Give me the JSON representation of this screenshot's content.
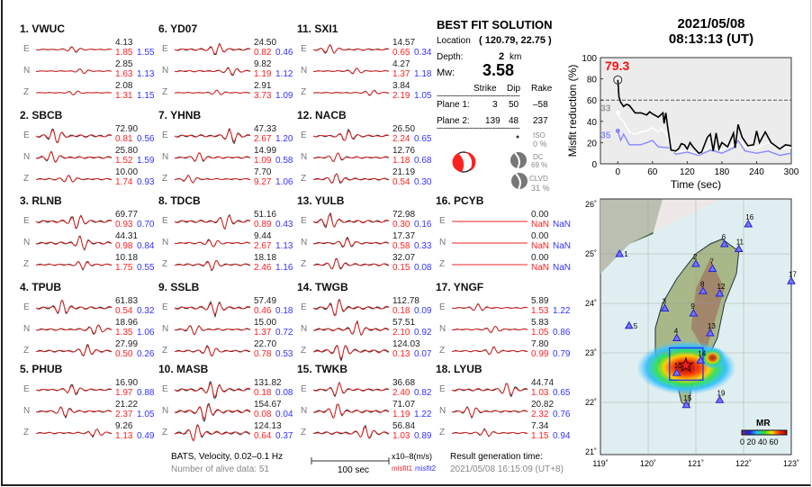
{
  "stations": [
    {
      "label": "1.  VWUC",
      "comps": [
        [
          "E",
          "4.13",
          "1.85",
          "1.55"
        ],
        [
          "N",
          "2.85",
          "1.63",
          "1.13"
        ],
        [
          "Z",
          "2.08",
          "1.31",
          "1.15"
        ]
      ]
    },
    {
      "label": "2.  SBCB",
      "comps": [
        [
          "E",
          "72.90",
          "0.81",
          "0.56"
        ],
        [
          "N",
          "25.80",
          "1.52",
          "1.59"
        ],
        [
          "Z",
          "10.00",
          "1.74",
          "0.93"
        ]
      ]
    },
    {
      "label": "3.  RLNB",
      "comps": [
        [
          "E",
          "69.77",
          "0.93",
          "0.70"
        ],
        [
          "N",
          "44.31",
          "0.98",
          "0.84"
        ],
        [
          "Z",
          "10.18",
          "1.75",
          "0.55"
        ]
      ]
    },
    {
      "label": "4.  TPUB",
      "comps": [
        [
          "E",
          "61.83",
          "0.54",
          "0.32"
        ],
        [
          "N",
          "18.96",
          "1.35",
          "1.06"
        ],
        [
          "Z",
          "27.99",
          "0.50",
          "0.26"
        ]
      ]
    },
    {
      "label": "5.  PHUB",
      "comps": [
        [
          "E",
          "16.90",
          "1.97",
          "0.88"
        ],
        [
          "N",
          "21.22",
          "2.37",
          "1.05"
        ],
        [
          "Z",
          "9.26",
          "1.13",
          "0.49"
        ]
      ]
    },
    {
      "label": "6.  YD07",
      "comps": [
        [
          "E",
          "24.50",
          "0.82",
          "0.46"
        ],
        [
          "N",
          "9.82",
          "1.19",
          "1.12"
        ],
        [
          "Z",
          "2.91",
          "3.73",
          "1.09"
        ]
      ]
    },
    {
      "label": "7.  YHNB",
      "comps": [
        [
          "E",
          "47.33",
          "2.67",
          "1.20"
        ],
        [
          "N",
          "14.99",
          "1.09",
          "0.58"
        ],
        [
          "Z",
          "7.70",
          "9.27",
          "1.06"
        ]
      ]
    },
    {
      "label": "8.  TDCB",
      "comps": [
        [
          "E",
          "51.16",
          "0.89",
          "0.43"
        ],
        [
          "N",
          "9.44",
          "2.67",
          "1.13"
        ],
        [
          "Z",
          "18.18",
          "2.46",
          "1.16"
        ]
      ]
    },
    {
      "label": "9.  SSLB",
      "comps": [
        [
          "E",
          "57.49",
          "0.46",
          "0.18"
        ],
        [
          "N",
          "15.00",
          "1.37",
          "0.72"
        ],
        [
          "Z",
          "22.70",
          "0.78",
          "0.53"
        ]
      ]
    },
    {
      "label": "10. MASB",
      "comps": [
        [
          "E",
          "131.82",
          "0.18",
          "0.08"
        ],
        [
          "N",
          "154.67",
          "0.08",
          "0.04"
        ],
        [
          "Z",
          "124.13",
          "0.64",
          "0.37"
        ]
      ]
    },
    {
      "label": "11. SXI1",
      "comps": [
        [
          "E",
          "14.57",
          "0.65",
          "0.34"
        ],
        [
          "N",
          "4.27",
          "1.37",
          "1.18"
        ],
        [
          "Z",
          "3.84",
          "2.19",
          "1.05"
        ]
      ]
    },
    {
      "label": "12. NACB",
      "comps": [
        [
          "E",
          "26.50",
          "2.24",
          "0.65"
        ],
        [
          "N",
          "12.76",
          "1.18",
          "0.68"
        ],
        [
          "Z",
          "21.19",
          "0.54",
          "0.30"
        ]
      ]
    },
    {
      "label": "13. YULB",
      "comps": [
        [
          "E",
          "72.98",
          "0.30",
          "0.16"
        ],
        [
          "N",
          "17.37",
          "0.58",
          "0.33"
        ],
        [
          "Z",
          "32.07",
          "0.15",
          "0.08"
        ]
      ]
    },
    {
      "label": "14. TWGB",
      "comps": [
        [
          "E",
          "112.78",
          "0.18",
          "0.09"
        ],
        [
          "N",
          "57.51",
          "2.10",
          "0.92"
        ],
        [
          "Z",
          "124.03",
          "0.13",
          "0.07"
        ]
      ]
    },
    {
      "label": "15. TWKB",
      "comps": [
        [
          "E",
          "36.68",
          "2.40",
          "0.82"
        ],
        [
          "N",
          "71.07",
          "1.19",
          "1.22"
        ],
        [
          "Z",
          "56.84",
          "1.03",
          "0.89"
        ]
      ]
    },
    {
      "label": "16. PCYB",
      "comps": [
        [
          "E",
          "0.00",
          "NaN",
          "NaN"
        ],
        [
          "N",
          "0.00",
          "NaN",
          "NaN"
        ],
        [
          "Z",
          "0.00",
          "NaN",
          "NaN"
        ]
      ]
    },
    {
      "label": "17. YNGF",
      "comps": [
        [
          "E",
          "5.89",
          "1.53",
          "1.22"
        ],
        [
          "N",
          "5.83",
          "1.05",
          "0.86"
        ],
        [
          "Z",
          "7.80",
          "0.99",
          "0.79"
        ]
      ]
    },
    {
      "label": "18. LYUB",
      "comps": [
        [
          "E",
          "44.74",
          "1.03",
          "0.65"
        ],
        [
          "N",
          "20.82",
          "2.32",
          "0.76"
        ],
        [
          "Z",
          "7.34",
          "1.15",
          "0.94"
        ]
      ]
    }
  ],
  "footer": {
    "network": "BATS, Velocity, 0.02–0.1 Hz",
    "alive": "Number of alive data: 51",
    "scale": "100 sec",
    "unit": "x10–8(m/s)",
    "misfit1": "misfit1",
    "misfit2": "misfit2",
    "gen_label": "Result generation time:",
    "gen_time": "2021/05/08 16:15:09 (UT+8)"
  },
  "solution": {
    "title": "BEST FIT SOLUTION",
    "location_label": "Location",
    "location": "( 120.79,  22.75 )",
    "depth_label": "Depth:",
    "depth": "2",
    "depth_unit": "km",
    "mw_label": "Mw:",
    "mw": "3.58",
    "headers": [
      "Strike",
      "Dip",
      "Rake"
    ],
    "dashes": "-------------------------------------",
    "planes": [
      [
        "Plane 1:",
        "3",
        "50",
        "–58"
      ],
      [
        "Plane 2:",
        "139",
        "48",
        "237"
      ]
    ],
    "iso": [
      "ISO",
      "0 %"
    ],
    "dc": [
      "DC",
      "69 %"
    ],
    "clvd": [
      "CLVD",
      "31 %"
    ]
  },
  "event": {
    "date": "2021/05/08",
    "time": "08:13:13  (UT)"
  },
  "chart_data": {
    "type": "line",
    "xlabel": "Time (sec)",
    "ylabel": "Misfit reduction (%)",
    "xlim": [
      -30,
      300
    ],
    "ylim": [
      0,
      100
    ],
    "xticks": [
      "0",
      "60",
      "120",
      "180",
      "240",
      "300"
    ],
    "yticks": [
      "0",
      "20",
      "40",
      "60",
      "80",
      "100"
    ],
    "threshold": 60,
    "peak_label": "79.3",
    "series": [
      {
        "color": "#000000",
        "x": [
          0,
          2,
          5,
          10,
          15,
          20,
          30,
          40,
          50,
          55,
          60,
          70,
          78,
          80,
          83,
          86,
          92,
          100,
          105,
          110,
          115,
          120,
          125,
          130,
          140,
          145,
          155,
          160,
          165,
          170,
          175,
          180,
          190,
          200,
          203,
          208,
          215,
          225,
          235,
          240,
          245,
          255,
          265,
          280,
          290,
          300
        ],
        "y": [
          79,
          63,
          58,
          54,
          56,
          55,
          48,
          48,
          46,
          49,
          47,
          44,
          48,
          38,
          48,
          36,
          13,
          12,
          14,
          19,
          18,
          14,
          20,
          16,
          10,
          11,
          25,
          28,
          12,
          29,
          14,
          20,
          16,
          29,
          15,
          37,
          25,
          17,
          18,
          31,
          20,
          30,
          20,
          14,
          18,
          17
        ]
      },
      {
        "color": "#ffffff",
        "label": "33",
        "x": [
          0,
          5,
          10,
          20,
          30,
          40,
          50,
          60,
          70,
          75,
          85,
          92,
          100,
          120,
          140,
          160,
          180,
          200,
          208,
          220,
          240,
          260,
          280,
          300
        ],
        "y": [
          48,
          42,
          40,
          30,
          28,
          30,
          31,
          34,
          30,
          33,
          28,
          12,
          11,
          13,
          9,
          16,
          13,
          18,
          24,
          16,
          15,
          20,
          14,
          15
        ]
      },
      {
        "color": "#8888ff",
        "label": "35",
        "x": [
          0,
          5,
          10,
          20,
          40,
          60,
          70,
          90,
          100,
          120,
          140,
          160,
          180,
          200,
          208,
          220,
          240,
          260,
          280,
          300
        ],
        "y": [
          31,
          22,
          28,
          18,
          18,
          22,
          16,
          15,
          9,
          11,
          8,
          13,
          10,
          15,
          22,
          12,
          10,
          12,
          8,
          10
        ]
      }
    ]
  },
  "map": {
    "lon_ticks": [
      "119˚",
      "120˚",
      "121˚",
      "122˚",
      "123˚"
    ],
    "lat_ticks": [
      "21˚",
      "22˚",
      "23˚",
      "24˚",
      "25˚",
      "26˚"
    ],
    "colorbar_label": "MR",
    "colorbar_ticks": "0 20 40 60",
    "epicenter": [
      120.79,
      22.75
    ],
    "stations": [
      [
        "1",
        119.4,
        25.0
      ],
      [
        "2",
        121.0,
        24.8
      ],
      [
        "3",
        120.35,
        23.9
      ],
      [
        "4",
        120.6,
        23.3
      ],
      [
        "5",
        119.6,
        23.55
      ],
      [
        "6",
        121.6,
        25.2
      ],
      [
        "7",
        121.35,
        24.7
      ],
      [
        "8",
        121.15,
        24.25
      ],
      [
        "9",
        120.95,
        23.8
      ],
      [
        "10",
        120.6,
        22.6
      ],
      [
        "11",
        121.9,
        25.1
      ],
      [
        "12",
        121.5,
        24.2
      ],
      [
        "13",
        121.3,
        23.4
      ],
      [
        "14",
        121.1,
        22.85
      ],
      [
        "15",
        120.8,
        21.95
      ],
      [
        "16",
        122.1,
        25.6
      ],
      [
        "17",
        123.0,
        24.45
      ],
      [
        "19",
        121.5,
        22.05
      ]
    ]
  }
}
